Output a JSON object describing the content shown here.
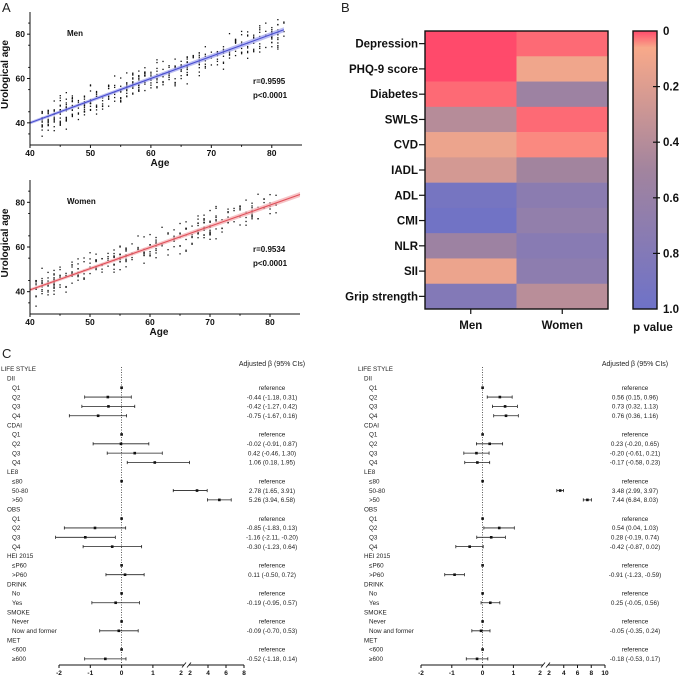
{
  "panels": {
    "a": "A",
    "b": "B",
    "c": "C"
  },
  "chart_data": [
    {
      "type": "scatter",
      "id": "men-scatter",
      "title": "Men",
      "xlabel": "Age",
      "ylabel": "Urological age",
      "xlim": [
        40,
        85
      ],
      "ylim": [
        30,
        90
      ],
      "xticks": [
        40,
        50,
        60,
        70,
        80
      ],
      "yticks": [
        40,
        60,
        80
      ],
      "annotation": [
        "r=0.9595",
        "p<0.0001"
      ],
      "fit_line": {
        "color": "#4a4fd0",
        "band_color": "#9fa2ee",
        "from": [
          40,
          40
        ],
        "to": [
          82,
          82
        ]
      },
      "points_seed": 7,
      "point_count": 420,
      "x_range": [
        42,
        82
      ]
    },
    {
      "type": "scatter",
      "id": "women-scatter",
      "title": "Women",
      "xlabel": "Age",
      "ylabel": "Urological age",
      "xlim": [
        40,
        85
      ],
      "ylim": [
        30,
        90
      ],
      "xticks": [
        40,
        50,
        60,
        70,
        80
      ],
      "yticks": [
        40,
        60,
        80
      ],
      "annotation": [
        "r=0.9534",
        "p<0.0001"
      ],
      "fit_line": {
        "color": "#e0505a",
        "band_color": "#f4a9ae",
        "from": [
          40,
          40.8
        ],
        "to": [
          85,
          83.5
        ]
      },
      "points_seed": 13,
      "point_count": 330,
      "x_range": [
        41,
        81
      ]
    },
    {
      "type": "heatmap",
      "id": "pvalue-heatmap",
      "rows": [
        "Depression",
        "PHQ-9 score",
        "Diabetes",
        "SWLS",
        "CVD",
        "IADL",
        "ADL",
        "CMI",
        "NLR",
        "SII",
        "Grip strength"
      ],
      "columns": [
        "Men",
        "Women"
      ],
      "values": [
        [
          0.0,
          0.02
        ],
        [
          0.0,
          0.1
        ],
        [
          0.02,
          0.55
        ],
        [
          0.4,
          0.02
        ],
        [
          0.12,
          0.04
        ],
        [
          0.25,
          0.5
        ],
        [
          0.92,
          0.72
        ],
        [
          0.97,
          0.65
        ],
        [
          0.55,
          0.75
        ],
        [
          0.12,
          0.7
        ],
        [
          0.8,
          0.38
        ]
      ],
      "colorbar": {
        "label": "p value",
        "ticks": [
          "0",
          "0.2",
          "0.4",
          "0.6",
          "0.8",
          "1.0"
        ],
        "range": [
          0,
          1
        ],
        "stops": [
          "#ff4a6b",
          "#f8a98a",
          "#a2849e",
          "#6e72c8"
        ]
      }
    },
    {
      "type": "forest",
      "id": "forest-men",
      "header": "Adjusted β (95% CIs)",
      "xticks_left": [
        "-2",
        "-1",
        "0",
        "1",
        "2"
      ],
      "xticks_right": [
        "2",
        "4",
        "6",
        "8"
      ],
      "x_left_range": [
        -2,
        1.7
      ],
      "x_right_range": [
        2,
        8
      ],
      "rows": [
        {
          "label": "LIFE STYLE",
          "level": 0
        },
        {
          "label": "DII",
          "level": 1
        },
        {
          "label": "Q1",
          "level": 2,
          "est": 0,
          "ref": true,
          "text": "reference"
        },
        {
          "label": "Q2",
          "level": 2,
          "est": -0.44,
          "lo": -1.18,
          "hi": 0.31,
          "text": "-0.44 (-1.18, 0.31)"
        },
        {
          "label": "Q3",
          "level": 2,
          "est": -0.42,
          "lo": -1.27,
          "hi": 0.42,
          "text": "-0.42 (-1.27, 0.42)"
        },
        {
          "label": "Q4",
          "level": 2,
          "est": -0.75,
          "lo": -1.67,
          "hi": 0.16,
          "text": "-0.75 (-1.67, 0.16)"
        },
        {
          "label": "CDAI",
          "level": 1
        },
        {
          "label": "Q1",
          "level": 2,
          "est": 0,
          "ref": true,
          "text": "reference"
        },
        {
          "label": "Q2",
          "level": 2,
          "est": -0.02,
          "lo": -0.91,
          "hi": 0.87,
          "text": "-0.02 (-0.91, 0.87)"
        },
        {
          "label": "Q3",
          "level": 2,
          "est": 0.42,
          "lo": -0.46,
          "hi": 1.3,
          "text": "0.42 (-0.46, 1.30)"
        },
        {
          "label": "Q4",
          "level": 2,
          "est": 1.06,
          "lo": 0.18,
          "hi": 1.95,
          "text": "1.06 (0.18, 1.95)"
        },
        {
          "label": "LE8",
          "level": 1
        },
        {
          "label": "≤80",
          "level": 2,
          "est": 0,
          "ref": true,
          "text": "reference"
        },
        {
          "label": "50-80",
          "level": 2,
          "est": 2.78,
          "lo": 1.65,
          "hi": 3.91,
          "text": "2.78 (1.65, 3.91)"
        },
        {
          "label": ">50",
          "level": 2,
          "est": 5.26,
          "lo": 3.94,
          "hi": 6.58,
          "text": "5.26 (3.94, 6.58)"
        },
        {
          "label": "OBS",
          "level": 1
        },
        {
          "label": "Q1",
          "level": 2,
          "est": 0,
          "ref": true,
          "text": "reference"
        },
        {
          "label": "Q2",
          "level": 2,
          "est": -0.85,
          "lo": -1.83,
          "hi": 0.13,
          "text": "-0.85 (-1.83, 0.13)"
        },
        {
          "label": "Q3",
          "level": 2,
          "est": -1.16,
          "lo": -2.11,
          "hi": -0.2,
          "text": "-1.16 (-2.11, -0.20)"
        },
        {
          "label": "Q4",
          "level": 2,
          "est": -0.3,
          "lo": -1.23,
          "hi": 0.64,
          "text": "-0.30 (-1.23, 0.64)"
        },
        {
          "label": "HEI 2015",
          "level": 1
        },
        {
          "label": "≤P60",
          "level": 2,
          "est": 0,
          "ref": true,
          "text": "reference"
        },
        {
          "label": ">P60",
          "level": 2,
          "est": 0.11,
          "lo": -0.5,
          "hi": 0.72,
          "text": "0.11 (-0.50, 0.72)"
        },
        {
          "label": "DRINK",
          "level": 1
        },
        {
          "label": "No",
          "level": 2,
          "est": 0,
          "ref": true,
          "text": "reference"
        },
        {
          "label": "Yes",
          "level": 2,
          "est": -0.19,
          "lo": -0.95,
          "hi": 0.57,
          "text": "-0.19 (-0.95, 0.57)"
        },
        {
          "label": "SMOKE",
          "level": 1
        },
        {
          "label": "Never",
          "level": 2,
          "est": 0,
          "ref": true,
          "text": "reference"
        },
        {
          "label": "Now and former",
          "level": 2,
          "est": -0.09,
          "lo": -0.7,
          "hi": 0.53,
          "text": "-0.09 (-0.70, 0.53)"
        },
        {
          "label": "MET",
          "level": 1
        },
        {
          "label": "<600",
          "level": 2,
          "est": 0,
          "ref": true,
          "text": "reference"
        },
        {
          "label": "≥600",
          "level": 2,
          "est": -0.52,
          "lo": -1.18,
          "hi": 0.14,
          "text": "-0.52 (-1.18, 0.14)"
        }
      ]
    },
    {
      "type": "forest",
      "id": "forest-women",
      "header": "Adjusted β (95% CIs)",
      "xticks_left": [
        "-2",
        "-1",
        "0",
        "1",
        "2"
      ],
      "xticks_right": [
        "2",
        "4",
        "6",
        "8",
        "10"
      ],
      "x_left_range": [
        -2,
        1.7
      ],
      "x_right_range": [
        2,
        10
      ],
      "rows": [
        {
          "label": "LIFE STYLE",
          "level": 0
        },
        {
          "label": "DII",
          "level": 1
        },
        {
          "label": "Q1",
          "level": 2,
          "est": 0,
          "ref": true,
          "text": "reference"
        },
        {
          "label": "Q2",
          "level": 2,
          "est": 0.56,
          "lo": 0.15,
          "hi": 0.96,
          "text": "0.56 (0.15, 0.96)"
        },
        {
          "label": "Q3",
          "level": 2,
          "est": 0.73,
          "lo": 0.32,
          "hi": 1.13,
          "text": "0.73 (0.32, 1.13)"
        },
        {
          "label": "Q4",
          "level": 2,
          "est": 0.76,
          "lo": 0.36,
          "hi": 1.16,
          "text": "0.76 (0.36, 1.16)"
        },
        {
          "label": "CDAI",
          "level": 1
        },
        {
          "label": "Q1",
          "level": 2,
          "est": 0,
          "ref": true,
          "text": "reference"
        },
        {
          "label": "Q2",
          "level": 2,
          "est": 0.23,
          "lo": -0.2,
          "hi": 0.65,
          "text": "0.23 (-0.20, 0.65)"
        },
        {
          "label": "Q3",
          "level": 2,
          "est": -0.2,
          "lo": -0.61,
          "hi": 0.21,
          "text": "-0.20 (-0.61, 0.21)"
        },
        {
          "label": "Q4",
          "level": 2,
          "est": -0.17,
          "lo": -0.58,
          "hi": 0.23,
          "text": "-0.17 (-0.58, 0.23)"
        },
        {
          "label": "LE8",
          "level": 1
        },
        {
          "label": "≤80",
          "level": 2,
          "est": 0,
          "ref": true,
          "text": "reference"
        },
        {
          "label": "50-80",
          "level": 2,
          "est": 3.48,
          "lo": 2.99,
          "hi": 3.97,
          "text": "3.48 (2.99, 3.97)"
        },
        {
          "label": ">50",
          "level": 2,
          "est": 7.44,
          "lo": 6.84,
          "hi": 8.03,
          "text": "7.44 (6.84, 8.03)"
        },
        {
          "label": "OBS",
          "level": 1
        },
        {
          "label": "Q1",
          "level": 2,
          "est": 0,
          "ref": true,
          "text": "reference"
        },
        {
          "label": "Q2",
          "level": 2,
          "est": 0.54,
          "lo": 0.04,
          "hi": 1.03,
          "text": "0.54 (0.04, 1.03)"
        },
        {
          "label": "Q3",
          "level": 2,
          "est": 0.28,
          "lo": -0.19,
          "hi": 0.74,
          "text": "0.28 (-0.19, 0.74)"
        },
        {
          "label": "Q4",
          "level": 2,
          "est": -0.42,
          "lo": -0.87,
          "hi": 0.02,
          "text": "-0.42 (-0.87, 0.02)"
        },
        {
          "label": "HEI 2015",
          "level": 1
        },
        {
          "label": "≤P60",
          "level": 2,
          "est": 0,
          "ref": true,
          "text": "reference"
        },
        {
          "label": ">P60",
          "level": 2,
          "est": -0.91,
          "lo": -1.23,
          "hi": -0.59,
          "text": "-0.91 (-1.23, -0.59)"
        },
        {
          "label": "DRINK",
          "level": 1
        },
        {
          "label": "No",
          "level": 2,
          "est": 0,
          "ref": true,
          "text": "reference"
        },
        {
          "label": "Yes",
          "level": 2,
          "est": 0.25,
          "lo": -0.05,
          "hi": 0.56,
          "text": "0.25 (-0.05, 0.56)"
        },
        {
          "label": "SMOKE",
          "level": 1
        },
        {
          "label": "Never",
          "level": 2,
          "est": 0,
          "ref": true,
          "text": "reference"
        },
        {
          "label": "Now and former",
          "level": 2,
          "est": -0.05,
          "lo": -0.35,
          "hi": 0.24,
          "text": "-0.05 (-0.35, 0.24)"
        },
        {
          "label": "MET",
          "level": 1
        },
        {
          "label": "<600",
          "level": 2,
          "est": 0,
          "ref": true,
          "text": "reference"
        },
        {
          "label": "≥600",
          "level": 2,
          "est": -0.18,
          "lo": -0.53,
          "hi": 0.17,
          "text": "-0.18 (-0.53, 0.17)"
        }
      ]
    }
  ]
}
